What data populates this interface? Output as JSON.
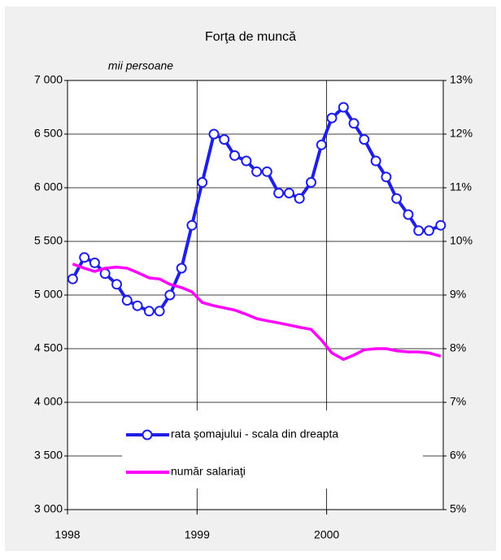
{
  "chart_data": {
    "type": "line",
    "title": "Forţa de muncă",
    "y_label": "mii persoane",
    "x": [
      1998.04,
      1998.13,
      1998.21,
      1998.29,
      1998.38,
      1998.46,
      1998.54,
      1998.63,
      1998.71,
      1998.79,
      1998.88,
      1998.96,
      1999.04,
      1999.13,
      1999.21,
      1999.29,
      1999.38,
      1999.46,
      1999.54,
      1999.63,
      1999.71,
      1999.79,
      1999.88,
      1999.96,
      2000.04,
      2000.13,
      2000.21,
      2000.29,
      2000.38,
      2000.46,
      2000.54,
      2000.63,
      2000.71,
      2000.79,
      2000.88
    ],
    "series": [
      {
        "name": "rata şomajului - scala din dreapta",
        "color": "#1f1fe6",
        "axis": "y2",
        "markers": true,
        "values": [
          9.3,
          9.7,
          9.6,
          9.4,
          9.2,
          8.9,
          8.8,
          8.7,
          8.7,
          9.0,
          9.5,
          10.3,
          11.1,
          12.0,
          11.9,
          11.6,
          11.5,
          11.3,
          11.3,
          10.9,
          10.9,
          10.8,
          11.1,
          11.8,
          12.3,
          12.5,
          12.2,
          11.9,
          11.5,
          11.2,
          10.8,
          10.5,
          10.2,
          10.2,
          10.3
        ]
      },
      {
        "name": "număr salariaţi",
        "color": "#ff00ff",
        "markers": false,
        "values": [
          5290,
          5250,
          5220,
          5250,
          5260,
          5250,
          5210,
          5160,
          5150,
          5100,
          5070,
          5030,
          4930,
          4900,
          4880,
          4860,
          4820,
          4780,
          4760,
          4740,
          4720,
          4700,
          4680,
          4580,
          4460,
          4400,
          4440,
          4490,
          4500,
          4500,
          4480,
          4470,
          4470,
          4460,
          4430
        ]
      }
    ],
    "xlim": [
      1998,
      2000.9
    ],
    "xticks": [
      1998,
      1999,
      2000
    ],
    "ylim": [
      3000,
      7000
    ],
    "yticks": [
      {
        "value": 3000,
        "label": "3 000"
      },
      {
        "value": 3500,
        "label": "3 500"
      },
      {
        "value": 4000,
        "label": "4 000"
      },
      {
        "value": 4500,
        "label": "4 500"
      },
      {
        "value": 5000,
        "label": "5 000"
      },
      {
        "value": 5500,
        "label": "5 500"
      },
      {
        "value": 6000,
        "label": "6 000"
      },
      {
        "value": 6500,
        "label": "6 500"
      },
      {
        "value": 7000,
        "label": "7 000"
      }
    ],
    "y2lim": [
      5,
      13
    ],
    "y2ticks": [
      {
        "value": 5,
        "label": "5%"
      },
      {
        "value": 6,
        "label": "6%"
      },
      {
        "value": 7,
        "label": "7%"
      },
      {
        "value": 8,
        "label": "8%"
      },
      {
        "value": 9,
        "label": "9%"
      },
      {
        "value": 10,
        "label": "10%"
      },
      {
        "value": 11,
        "label": "11%"
      },
      {
        "value": 12,
        "label": "12%"
      },
      {
        "value": 13,
        "label": "13%"
      }
    ],
    "grid": true
  }
}
